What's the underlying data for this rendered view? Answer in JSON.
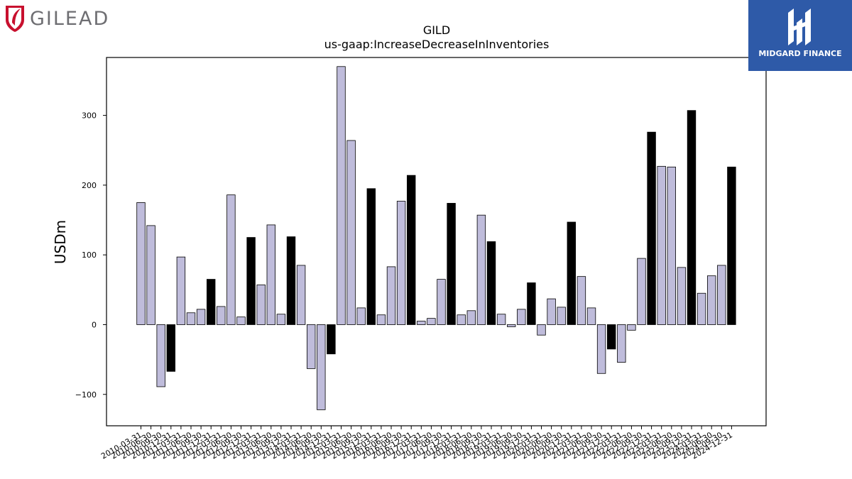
{
  "logos": {
    "left": {
      "text": "GILEAD",
      "icon": "gilead-shield-icon"
    },
    "right": {
      "text": "MIDGARD FINANCE",
      "icon": "midgard-emblem-icon"
    }
  },
  "colors": {
    "bar_q": "#bfbcdb",
    "bar_fy": "#000000",
    "gilead_red": "#c8102e",
    "gilead_gray": "#6e6e72",
    "midgard_blue": "#2e5aa8"
  },
  "chart_data": {
    "type": "bar",
    "title": "GILD",
    "subtitle": "us-gaap:IncreaseDecreaseInInventories",
    "ylabel": "USDm",
    "xlabel": "",
    "ylim": [
      -145,
      383
    ],
    "yticks": [
      -100,
      0,
      100,
      200,
      300
    ],
    "grid": false,
    "categories": [
      "2010-03-31",
      "2010-06-30",
      "2010-09-30",
      "2010-12-31",
      "2011-03-31",
      "2011-06-30",
      "2011-09-30",
      "2011-12-31",
      "2012-03-31",
      "2012-06-30",
      "2012-09-30",
      "2012-12-31",
      "2013-03-31",
      "2013-06-30",
      "2013-09-30",
      "2013-12-31",
      "2014-03-31",
      "2014-06-30",
      "2014-09-30",
      "2014-12-31",
      "2015-03-31",
      "2015-06-30",
      "2015-09-30",
      "2015-12-31",
      "2016-03-31",
      "2016-06-30",
      "2016-09-30",
      "2016-12-31",
      "2017-03-31",
      "2017-06-30",
      "2017-09-30",
      "2017-12-31",
      "2018-03-31",
      "2018-06-30",
      "2018-09-30",
      "2018-12-31",
      "2019-03-31",
      "2019-06-30",
      "2019-09-30",
      "2019-12-31",
      "2020-03-31",
      "2020-06-30",
      "2020-09-30",
      "2020-12-31",
      "2021-03-31",
      "2021-06-30",
      "2021-09-30",
      "2021-12-31",
      "2022-03-31",
      "2022-06-30",
      "2022-09-30",
      "2022-12-31",
      "2023-03-31",
      "2023-06-30",
      "2023-09-30",
      "2023-12-31",
      "2024-03-31",
      "2024-06-30",
      "2024-09-30",
      "2024-12-31"
    ],
    "values": [
      175,
      142,
      -89,
      -67,
      97,
      17,
      22,
      65,
      26,
      186,
      11,
      125,
      57,
      143,
      15,
      126,
      85,
      -63,
      -122,
      -42,
      370,
      264,
      24,
      195,
      14,
      83,
      177,
      214,
      5,
      9,
      65,
      174,
      14,
      20,
      157,
      119,
      15,
      -3,
      22,
      60,
      -15,
      37,
      25,
      147,
      69,
      24,
      -70,
      -35,
      -54,
      -8,
      95,
      276,
      227,
      226,
      82,
      307,
      45,
      70,
      85,
      226
    ],
    "annual_flags": [
      0,
      0,
      0,
      1,
      0,
      0,
      0,
      1,
      0,
      0,
      0,
      1,
      0,
      0,
      0,
      1,
      0,
      0,
      0,
      1,
      0,
      0,
      0,
      1,
      0,
      0,
      0,
      1,
      0,
      0,
      0,
      1,
      0,
      0,
      0,
      1,
      0,
      0,
      0,
      1,
      0,
      0,
      0,
      1,
      0,
      0,
      0,
      1,
      0,
      0,
      0,
      1,
      0,
      0,
      0,
      1,
      0,
      0,
      0,
      1
    ]
  }
}
